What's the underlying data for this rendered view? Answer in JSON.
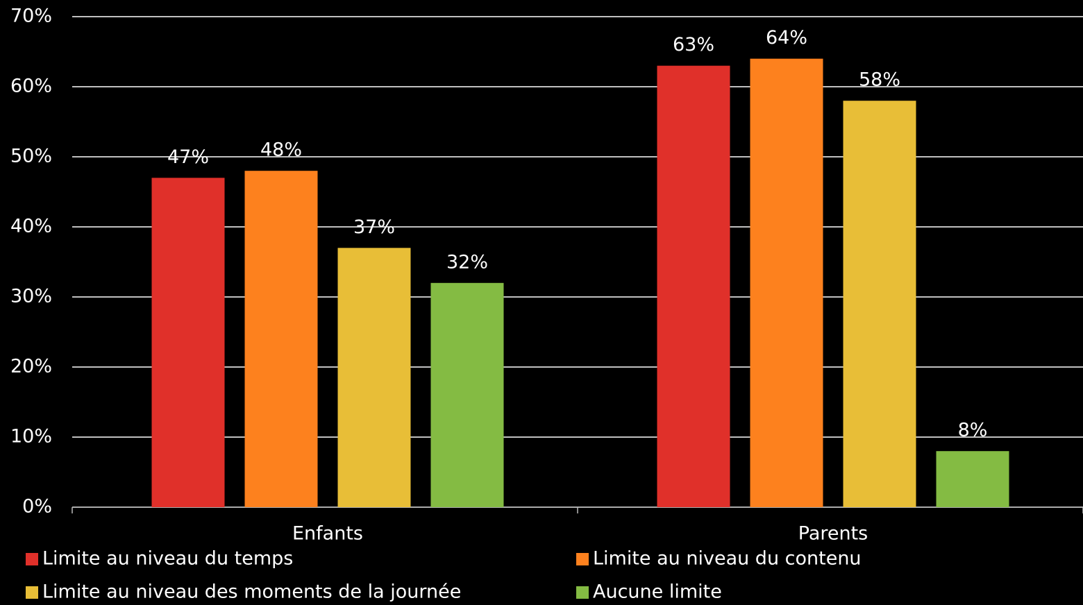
{
  "chart_data": {
    "type": "bar",
    "categories": [
      "Enfants",
      "Parents"
    ],
    "series": [
      {
        "name": "Limite au niveau du temps",
        "color": "#e0302a",
        "values": [
          47,
          63
        ],
        "value_labels": [
          "47%",
          "63%"
        ]
      },
      {
        "name": "Limite au niveau du contenu",
        "color": "#fd811e",
        "values": [
          48,
          64
        ],
        "value_labels": [
          "48%",
          "64%"
        ]
      },
      {
        "name": "Limite au niveau des moments de la journée",
        "color": "#e8be37",
        "values": [
          37,
          58
        ],
        "value_labels": [
          "37%",
          "58%"
        ]
      },
      {
        "name": "Aucune limite",
        "color": "#84bb43",
        "values": [
          32,
          8
        ],
        "value_labels": [
          "32%",
          "8%"
        ]
      }
    ],
    "ylim": [
      0,
      70
    ],
    "yticks": [
      {
        "value": 0,
        "label": "0%"
      },
      {
        "value": 10,
        "label": "10%"
      },
      {
        "value": 20,
        "label": "20%"
      },
      {
        "value": 30,
        "label": "30%"
      },
      {
        "value": 40,
        "label": "40%"
      },
      {
        "value": 50,
        "label": "50%"
      },
      {
        "value": 60,
        "label": "60%"
      },
      {
        "value": 70,
        "label": "70%"
      }
    ],
    "grid": true,
    "legend": "bottom"
  }
}
